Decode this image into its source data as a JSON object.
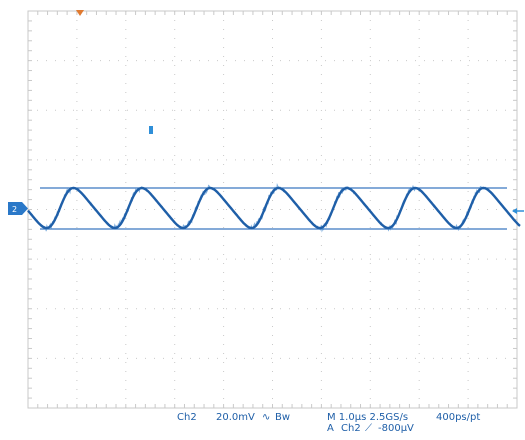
{
  "screen": {
    "background": "#ffffff",
    "graticule_color": "#c9c9c9",
    "trace_color": "#1f5fa8",
    "cursor_color": "#3a78c0",
    "trigger_marker_color": "#e07a30",
    "channel_marker_color": "#2f8fd8"
  },
  "waveform": {
    "cycles_visible": 7.2,
    "noise": "high-frequency ripple on rising edges"
  },
  "markers": {
    "ground_label": "2"
  },
  "readouts": {
    "channel": "Ch2",
    "vertical_scale": "20.0mV",
    "coupling_symbol": "∿",
    "bandwidth": "Bw",
    "horizontal": "M 1.0µs 2.5GS/s",
    "record": "400ps/pt",
    "trigger_source_prefix": "A",
    "trigger_channel": "Ch2",
    "trigger_slope": "⟋",
    "trigger_level": "-800µV"
  }
}
